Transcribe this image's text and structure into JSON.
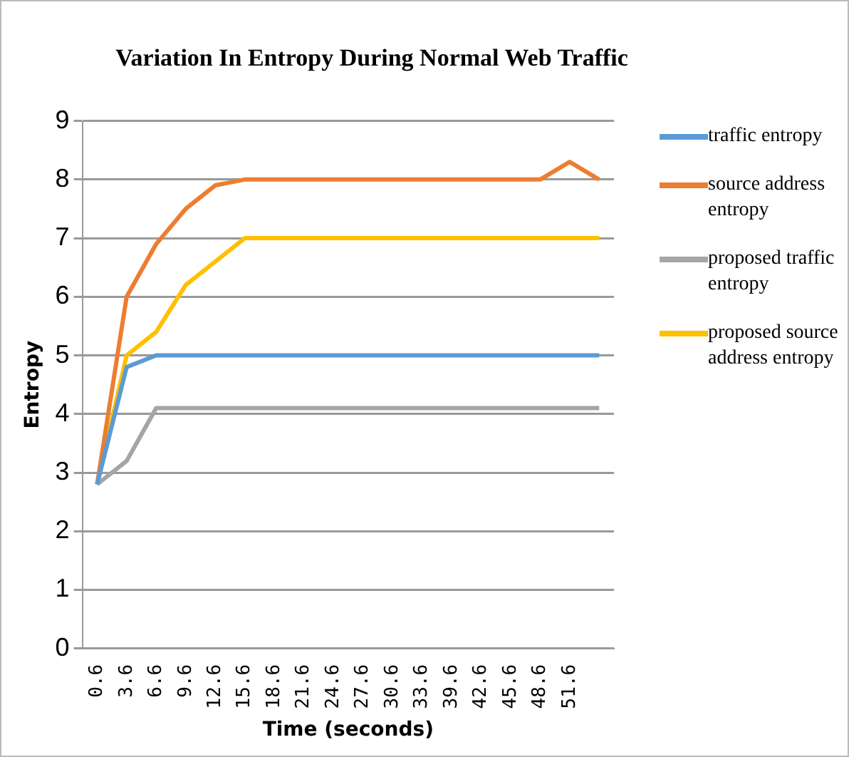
{
  "chart_data": {
    "type": "line",
    "title": "Variation In Entropy During Normal Web Traffic",
    "xlabel": "Time (seconds)",
    "ylabel": "Entropy",
    "categories": [
      "0.6",
      "3.6",
      "6.6",
      "9.6",
      "12.6",
      "15.6",
      "18.6",
      "21.6",
      "24.6",
      "27.6",
      "30.6",
      "33.6",
      "39.6",
      "42.6",
      "45.6",
      "48.6",
      "51.6",
      null
    ],
    "series": [
      {
        "name": "traffic entropy",
        "color": "#5b9bd5",
        "values": [
          2.8,
          4.8,
          5,
          5,
          5,
          5,
          5,
          5,
          5,
          5,
          5,
          5,
          5,
          5,
          5,
          5,
          5,
          5
        ]
      },
      {
        "name": "source address entropy",
        "color": "#ed7d31",
        "values": [
          2.8,
          6,
          6.9,
          7.5,
          7.9,
          8,
          8,
          8,
          8,
          8,
          8,
          8,
          8,
          8,
          8,
          8,
          8.3,
          8
        ]
      },
      {
        "name": "proposed traffic entropy",
        "color": "#a5a5a5",
        "values": [
          2.8,
          3.2,
          4.1,
          4.1,
          4.1,
          4.1,
          4.1,
          4.1,
          4.1,
          4.1,
          4.1,
          4.1,
          4.1,
          4.1,
          4.1,
          4.1,
          4.1,
          4.1
        ]
      },
      {
        "name": "proposed source address entropy",
        "color": "#ffc000",
        "values": [
          2.8,
          5,
          5.4,
          6.2,
          6.6,
          7,
          7,
          7,
          7,
          7,
          7,
          7,
          7,
          7,
          7,
          7,
          7,
          7
        ]
      }
    ],
    "ylim": [
      0,
      9
    ],
    "yticks": [
      0,
      1,
      2,
      3,
      4,
      5,
      6,
      7,
      8,
      9
    ],
    "grid": "y",
    "legend": "right",
    "marker": "none",
    "line_style": "solid"
  }
}
